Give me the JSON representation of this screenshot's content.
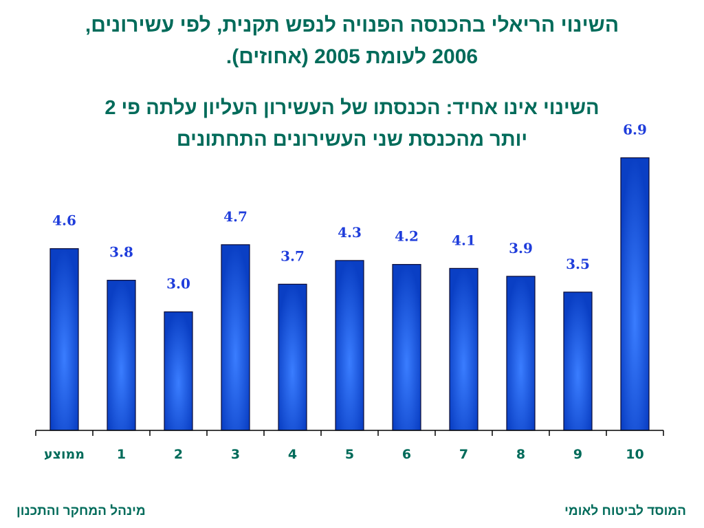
{
  "title_lines": [
    "השינוי הריאלי בהכנסה הפנויה לנפש תקנית, לפי עשירונים,",
    "2006 לעומת 2005 (אחוזים)."
  ],
  "subtitle_lines": [
    "השינוי אינו אחיד: הכנסתו של העשירון העליון עלתה פי 2",
    "יותר מהכנסת שני העשירונים התחתונים"
  ],
  "footer": {
    "right": "המוסד לביטוח לאומי",
    "left": "מינהל המחקר והתכנון"
  },
  "chart_data": {
    "type": "bar",
    "categories": [
      "ממוצע",
      "1",
      "2",
      "3",
      "4",
      "5",
      "6",
      "7",
      "8",
      "9",
      "10"
    ],
    "values": [
      4.6,
      3.8,
      3.0,
      4.7,
      3.7,
      4.3,
      4.2,
      4.1,
      3.9,
      3.5,
      6.9
    ],
    "data_labels": [
      "4.6",
      "3.8",
      "3.0",
      "4.7",
      "3.7",
      "4.3",
      "4.2",
      "4.1",
      "3.9",
      "3.5",
      "6.9"
    ],
    "ylim": [
      0,
      7.1
    ],
    "grid": false,
    "colors": {
      "bar_edge": "#0a3fc4",
      "bar_center": "#3a7dff",
      "bar_outline": "#0a0a33",
      "label": "#1f3ddb",
      "category": "#006b5a"
    }
  }
}
